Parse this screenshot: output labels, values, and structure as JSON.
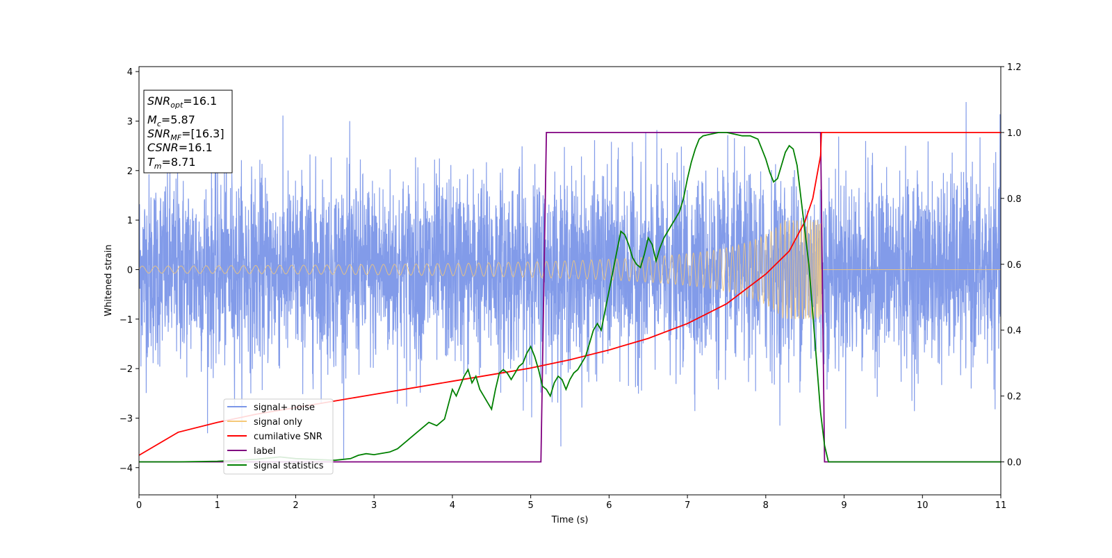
{
  "chart_data": {
    "type": "line",
    "xlabel": "Time (s)",
    "ylabel": "Whitened strain",
    "xlim": [
      0,
      11
    ],
    "ylim_left": [
      -4.55,
      4.1
    ],
    "ylim_right": [
      -0.1,
      1.2
    ],
    "x_ticks": [
      0,
      1,
      2,
      3,
      4,
      5,
      6,
      7,
      8,
      9,
      10,
      11
    ],
    "x_tick_labels": [
      "0",
      "1",
      "2",
      "3",
      "4",
      "5",
      "6",
      "7",
      "8",
      "9",
      "10",
      "11"
    ],
    "y_left_ticks": [
      -4,
      -3,
      -2,
      -1,
      0,
      1,
      2,
      3,
      4
    ],
    "y_left_tick_labels": [
      "−4",
      "−3",
      "−2",
      "−1",
      "0",
      "1",
      "2",
      "3",
      "4"
    ],
    "y_right_ticks": [
      0.0,
      0.2,
      0.4,
      0.6,
      0.8,
      1.0,
      1.2
    ],
    "y_right_tick_labels": [
      "0.0",
      "0.2",
      "0.4",
      "0.6",
      "0.8",
      "1.0",
      "1.2"
    ],
    "grid": false,
    "legend_position": "lower-left",
    "annotation_box": {
      "lines": [
        {
          "base": "SNR",
          "sub": "opt",
          "value": "=16.1"
        },
        {
          "base": "M",
          "sub": "c",
          "value": "=5.87"
        },
        {
          "base": "SNR",
          "sub": "MF",
          "value": "=[16.3]"
        },
        {
          "base": "CSNR",
          "sub": "",
          "value": "=16.1"
        },
        {
          "base": "T",
          "sub": "m",
          "value": "=8.71"
        }
      ]
    },
    "series": [
      {
        "name": "signal+ noise",
        "color": "#7b96e8",
        "axis": "left",
        "description_values": {
          "amplitude_range": [
            -4.15,
            3.7
          ],
          "typical_std": 1.0,
          "x_range": [
            0,
            11
          ]
        }
      },
      {
        "name": "signal only",
        "color": "#f5c878",
        "axis": "left",
        "chirp": {
          "start": 0.0,
          "end": 8.71,
          "amp_start": 0.07,
          "amp_end": 1.0,
          "after_value": 0.0
        }
      },
      {
        "name": "cumilative SNR",
        "color": "#ff0000",
        "axis": "right",
        "x": [
          0,
          0.5,
          1,
          1.5,
          2,
          2.5,
          3,
          3.5,
          4,
          4.5,
          5,
          5.5,
          6,
          6.5,
          7,
          7.5,
          8,
          8.3,
          8.5,
          8.6,
          8.7,
          8.71,
          11
        ],
        "y": [
          0.02,
          0.09,
          0.12,
          0.145,
          0.165,
          0.185,
          0.205,
          0.225,
          0.245,
          0.265,
          0.285,
          0.31,
          0.34,
          0.375,
          0.42,
          0.48,
          0.57,
          0.64,
          0.73,
          0.8,
          0.93,
          1.0,
          1.0
        ]
      },
      {
        "name": "label",
        "color": "#800080",
        "axis": "right",
        "x": [
          0,
          5.13,
          5.2,
          8.7,
          8.75,
          11
        ],
        "y": [
          0,
          0,
          1,
          1,
          0,
          0
        ]
      },
      {
        "name": "signal statistics",
        "color": "#008000",
        "axis": "right",
        "x": [
          0,
          0.5,
          1,
          1.5,
          1.8,
          2,
          2.5,
          2.7,
          2.8,
          2.9,
          3,
          3.2,
          3.3,
          3.4,
          3.5,
          3.6,
          3.7,
          3.8,
          3.9,
          4,
          4.05,
          4.1,
          4.15,
          4.2,
          4.25,
          4.3,
          4.35,
          4.4,
          4.45,
          4.5,
          4.55,
          4.6,
          4.65,
          4.7,
          4.75,
          4.8,
          4.85,
          4.9,
          4.95,
          5,
          5.05,
          5.1,
          5.15,
          5.2,
          5.25,
          5.3,
          5.35,
          5.4,
          5.45,
          5.5,
          5.55,
          5.6,
          5.65,
          5.7,
          5.75,
          5.8,
          5.85,
          5.9,
          5.95,
          6,
          6.05,
          6.1,
          6.15,
          6.2,
          6.25,
          6.3,
          6.35,
          6.4,
          6.45,
          6.5,
          6.55,
          6.6,
          6.65,
          6.7,
          6.75,
          6.8,
          6.85,
          6.9,
          6.95,
          7,
          7.05,
          7.1,
          7.15,
          7.2,
          7.3,
          7.4,
          7.5,
          7.6,
          7.7,
          7.8,
          7.9,
          7.95,
          8.0,
          8.05,
          8.1,
          8.15,
          8.2,
          8.25,
          8.3,
          8.35,
          8.4,
          8.45,
          8.5,
          8.55,
          8.6,
          8.65,
          8.7,
          8.75,
          8.8,
          8.9,
          9,
          10,
          11
        ],
        "y": [
          0,
          0,
          0.002,
          0.008,
          0.015,
          0.01,
          0.005,
          0.01,
          0.02,
          0.025,
          0.022,
          0.03,
          0.04,
          0.06,
          0.08,
          0.1,
          0.12,
          0.11,
          0.13,
          0.22,
          0.2,
          0.23,
          0.26,
          0.28,
          0.24,
          0.26,
          0.22,
          0.2,
          0.18,
          0.16,
          0.22,
          0.27,
          0.28,
          0.27,
          0.25,
          0.27,
          0.29,
          0.3,
          0.33,
          0.35,
          0.32,
          0.28,
          0.23,
          0.22,
          0.2,
          0.24,
          0.26,
          0.25,
          0.22,
          0.25,
          0.27,
          0.28,
          0.3,
          0.32,
          0.36,
          0.4,
          0.42,
          0.4,
          0.46,
          0.52,
          0.58,
          0.64,
          0.7,
          0.69,
          0.66,
          0.62,
          0.6,
          0.59,
          0.63,
          0.68,
          0.66,
          0.61,
          0.65,
          0.68,
          0.7,
          0.72,
          0.74,
          0.76,
          0.8,
          0.86,
          0.91,
          0.95,
          0.98,
          0.99,
          0.995,
          1.0,
          1.0,
          0.995,
          0.99,
          0.99,
          0.98,
          0.95,
          0.92,
          0.88,
          0.85,
          0.86,
          0.9,
          0.94,
          0.96,
          0.95,
          0.9,
          0.8,
          0.7,
          0.6,
          0.45,
          0.3,
          0.15,
          0.05,
          0.0,
          0.0,
          0.0,
          0.0,
          0.0
        ]
      }
    ]
  }
}
